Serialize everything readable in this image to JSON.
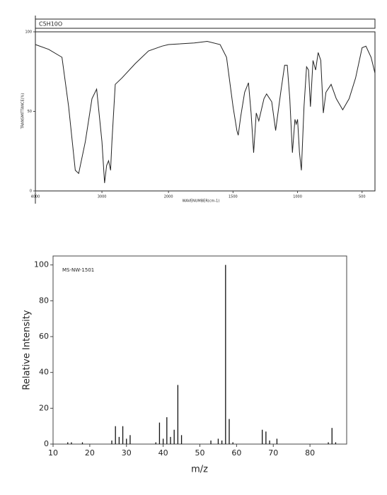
{
  "chart_data": [
    {
      "type": "line",
      "title": "C5H10O",
      "xlabel": "WAVENUMBER(cm-1)",
      "ylabel": "TRANSMITTANCE(%)",
      "xlim": [
        4000,
        400
      ],
      "x_scale_change": 2000,
      "ylim": [
        0,
        100
      ],
      "xticks": [
        4000,
        3000,
        2000,
        1500,
        1000,
        500
      ],
      "yticks": [
        0,
        50,
        100
      ],
      "color": "#222",
      "x": [
        4000,
        3800,
        3600,
        3500,
        3400,
        3350,
        3250,
        3150,
        3080,
        3000,
        2960,
        2930,
        2900,
        2870,
        2850,
        2800,
        2700,
        2500,
        2300,
        2100,
        2000,
        1800,
        1700,
        1600,
        1550,
        1500,
        1470,
        1460,
        1440,
        1410,
        1380,
        1360,
        1340,
        1320,
        1300,
        1260,
        1240,
        1200,
        1170,
        1130,
        1100,
        1080,
        1060,
        1040,
        1020,
        1010,
        1000,
        985,
        970,
        950,
        930,
        915,
        900,
        880,
        860,
        840,
        820,
        800,
        780,
        740,
        700,
        650,
        600,
        550,
        500,
        470,
        430,
        400
      ],
      "values": [
        92,
        89,
        84,
        53,
        13,
        11,
        31,
        58,
        64,
        31,
        5,
        16,
        19,
        13,
        31,
        67,
        71,
        80,
        88,
        91,
        92,
        93,
        94,
        92,
        84,
        53,
        38,
        35,
        47,
        62,
        68,
        49,
        24,
        49,
        44,
        58,
        61,
        56,
        38,
        62,
        79,
        79,
        58,
        24,
        45,
        42,
        45,
        24,
        13,
        53,
        78,
        76,
        53,
        82,
        76,
        87,
        82,
        49,
        62,
        67,
        58,
        51,
        58,
        71,
        90,
        91,
        84,
        74
      ]
    },
    {
      "type": "stem",
      "annotation": "MS-NW-1501",
      "xlabel": "m/z",
      "ylabel": "Relative Intensity",
      "xlim": [
        10,
        90
      ],
      "ylim": [
        0,
        105
      ],
      "xticks": [
        10,
        20,
        30,
        40,
        50,
        60,
        70,
        80
      ],
      "yticks": [
        0,
        20,
        40,
        60,
        80,
        100
      ],
      "color": "#111",
      "x": [
        14,
        15,
        18,
        26,
        27,
        28,
        29,
        30,
        31,
        38,
        39,
        40,
        41,
        42,
        43,
        44,
        45,
        53,
        55,
        56,
        57,
        58,
        59,
        67,
        68,
        69,
        71,
        85,
        86,
        87
      ],
      "values": [
        1,
        1,
        1,
        2,
        10,
        4,
        10,
        3,
        5,
        1,
        12,
        3,
        15,
        4,
        8,
        33,
        5,
        2,
        3,
        2,
        100,
        14,
        1,
        8,
        7,
        2,
        3,
        1,
        9,
        1
      ]
    }
  ]
}
